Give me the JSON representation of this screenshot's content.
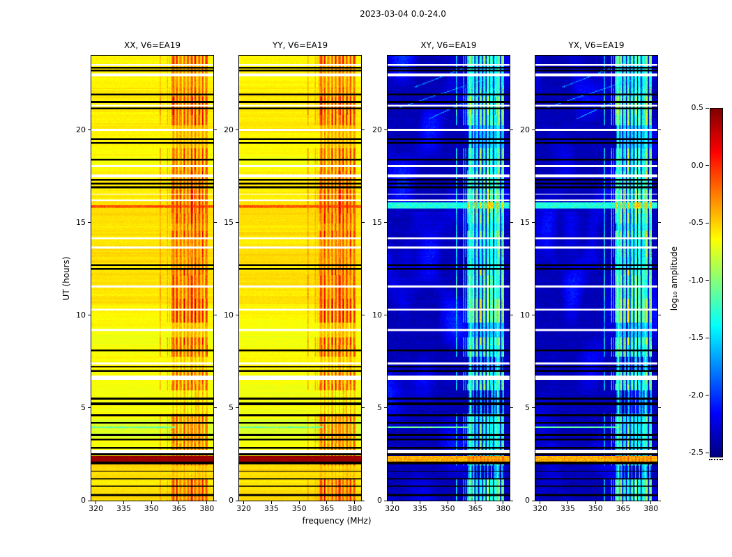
{
  "chart_data": {
    "type": "heatmap",
    "suptitle": "2023-03-04 0.0-24.0",
    "xlabel": "frequency (MHz)",
    "ylabel": "UT (hours)",
    "x_range": [
      317.5,
      383.5
    ],
    "y_range": [
      0,
      24
    ],
    "panels": [
      {
        "title": "XX, V6=EA19",
        "kind": "parallel"
      },
      {
        "title": "YY, V6=EA19",
        "kind": "parallel"
      },
      {
        "title": "XY, V6=EA19",
        "kind": "cross"
      },
      {
        "title": "YX, V6=EA19",
        "kind": "cross"
      }
    ],
    "xticks": [
      {
        "v": 320,
        "label": "320"
      },
      {
        "v": 335,
        "label": "335"
      },
      {
        "v": 350,
        "label": "350"
      },
      {
        "v": 365,
        "label": "365"
      },
      {
        "v": 380,
        "label": "380"
      }
    ],
    "yticks": [
      {
        "v": 0,
        "label": "0"
      },
      {
        "v": 5,
        "label": "5"
      },
      {
        "v": 10,
        "label": "10"
      },
      {
        "v": 15,
        "label": "15"
      },
      {
        "v": 20,
        "label": "20"
      }
    ],
    "colorbar": {
      "label": "log₁₀ amplitude",
      "colormap": "jet",
      "vmin": -2.53,
      "vmax": 0.5,
      "ticks": [
        {
          "v": 0.5,
          "label": "0.5"
        },
        {
          "v": 0.0,
          "label": "0.0"
        },
        {
          "v": -0.5,
          "label": "-0.5"
        },
        {
          "v": -1.0,
          "label": "-1.0"
        },
        {
          "v": -1.5,
          "label": "-1.5"
        },
        {
          "v": -2.0,
          "label": "-2.0"
        },
        {
          "v": -2.5,
          "label": "-2.5"
        }
      ]
    },
    "features": {
      "seed": 42,
      "background_parallel": -0.62,
      "background_cross": -2.36,
      "rfi_band_mhz": [
        361,
        380
      ],
      "persistent_lines_cross": [
        362.5,
        377.0
      ],
      "maroon_band": [
        2.1,
        2.38
      ],
      "green_row": [
        3.9,
        4.02
      ],
      "cross_green_band": [
        15.75,
        16.08
      ],
      "parallel_warm_row": [
        15.78,
        15.94
      ],
      "diagonal_streaks": [
        [
          20.6,
          340,
          22
        ],
        [
          21.2,
          324,
          30
        ],
        [
          22.3,
          332,
          26
        ]
      ],
      "black_rows": [
        [
          0.32,
          0.05
        ],
        [
          0.78,
          0.04
        ],
        [
          1.18,
          0.04
        ],
        [
          1.58,
          0.04
        ],
        [
          1.98,
          0.05
        ],
        [
          2.06,
          0.04
        ],
        [
          2.5,
          0.04
        ],
        [
          2.85,
          0.04
        ],
        [
          3.28,
          0.05
        ],
        [
          3.55,
          0.04
        ],
        [
          4.2,
          0.04
        ],
        [
          4.58,
          0.05
        ],
        [
          5.22,
          0.14
        ],
        [
          5.5,
          0.05
        ],
        [
          6.98,
          0.05
        ],
        [
          7.22,
          0.04
        ],
        [
          8.12,
          0.05
        ],
        [
          12.52,
          0.06
        ],
        [
          12.68,
          0.05
        ],
        [
          16.88,
          0.06
        ],
        [
          17.08,
          0.05
        ],
        [
          17.3,
          0.05
        ],
        [
          18.38,
          0.05
        ],
        [
          19.28,
          0.05
        ],
        [
          19.5,
          0.04
        ],
        [
          21.15,
          0.05
        ],
        [
          21.5,
          0.05
        ],
        [
          21.88,
          0.05
        ],
        [
          23.18,
          0.05
        ],
        [
          23.35,
          0.04
        ]
      ],
      "white_rows": [
        [
          2.58,
          0.05
        ],
        [
          2.7,
          0.04
        ],
        [
          6.62,
          0.2
        ],
        [
          7.4,
          0.05
        ],
        [
          9.2,
          0.04
        ],
        [
          10.3,
          0.06
        ],
        [
          11.55,
          0.04
        ],
        [
          13.65,
          0.05
        ],
        [
          14.16,
          0.05
        ],
        [
          16.22,
          0.05
        ],
        [
          16.52,
          0.04
        ],
        [
          17.52,
          0.14
        ],
        [
          18.06,
          0.05
        ],
        [
          20.0,
          0.04
        ],
        [
          21.32,
          0.05
        ],
        [
          22.98,
          0.07
        ],
        [
          23.5,
          0.04
        ]
      ]
    }
  }
}
